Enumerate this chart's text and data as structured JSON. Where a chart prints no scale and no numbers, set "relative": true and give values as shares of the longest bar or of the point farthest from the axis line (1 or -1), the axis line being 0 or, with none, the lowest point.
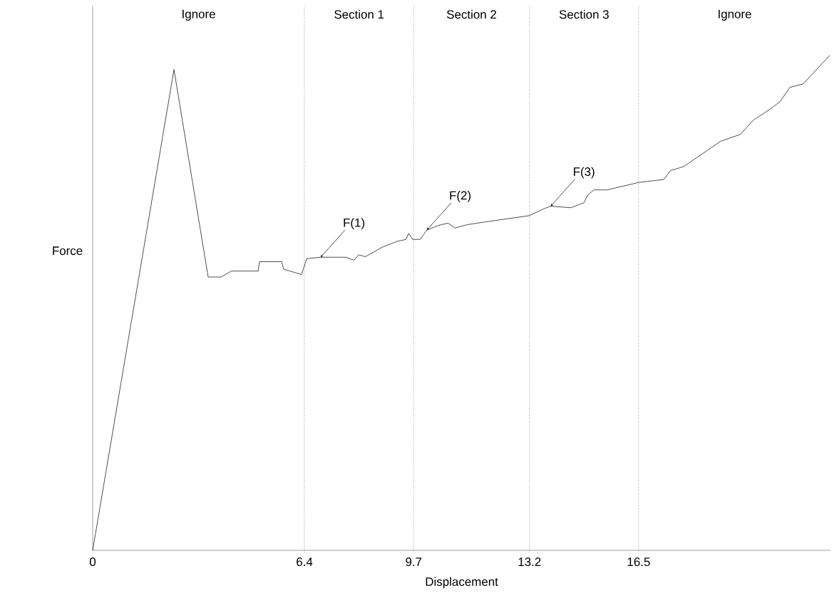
{
  "chart_data": {
    "type": "line",
    "relative": true,
    "xlabel": "Displacement",
    "ylabel": "Force",
    "color": "#000000",
    "line_style": "solid",
    "marker": "none",
    "grid": false,
    "tick_labels": "x",
    "xlim": [
      0,
      22.3
    ],
    "xticks": [
      0,
      6.4,
      9.7,
      13.2,
      16.5
    ],
    "x": [
      0,
      2.457,
      3.49,
      3.88,
      4.19,
      5.0,
      5.04,
      5.71,
      5.77,
      6.31,
      6.47,
      6.89,
      7.65,
      7.9,
      8.04,
      8.24,
      8.74,
      9.2,
      9.47,
      9.55,
      9.67,
      9.9,
      10.1,
      10.44,
      10.74,
      10.94,
      11.34,
      11.94,
      13.2,
      13.64,
      13.84,
      14.45,
      14.85,
      14.95,
      15.15,
      15.55,
      16.5,
      17.26,
      17.46,
      17.86,
      18.97,
      19.57,
      19.97,
      20.47,
      20.77,
      21.07,
      21.47,
      22.28
    ],
    "values": [
      0,
      0.971,
      0.552,
      0.552,
      0.564,
      0.564,
      0.583,
      0.583,
      0.568,
      0.557,
      0.589,
      0.592,
      0.592,
      0.586,
      0.597,
      0.593,
      0.612,
      0.624,
      0.628,
      0.64,
      0.628,
      0.628,
      0.647,
      0.656,
      0.661,
      0.651,
      0.658,
      0.664,
      0.676,
      0.69,
      0.695,
      0.692,
      0.702,
      0.717,
      0.728,
      0.728,
      0.743,
      0.749,
      0.767,
      0.775,
      0.826,
      0.84,
      0.869,
      0.891,
      0.906,
      0.935,
      0.942,
      1.0
    ],
    "ref_lines": [
      {
        "axis": "x",
        "value": 6.4,
        "line_style": "dotted"
      },
      {
        "axis": "x",
        "value": 9.7,
        "line_style": "dotted"
      },
      {
        "axis": "x",
        "value": 13.2,
        "line_style": "dotted"
      },
      {
        "axis": "x",
        "value": 16.5,
        "line_style": "dotted"
      }
    ],
    "annotations": [
      "Ignore",
      "Section 1",
      "Section 2",
      "Section 3",
      "Ignore",
      {
        "text": "F(1)",
        "x": 6.89,
        "y": 0.592
      },
      {
        "text": "F(2)",
        "x": 10.1,
        "y": 0.647
      },
      {
        "text": "F(3)",
        "x": 13.84,
        "y": 0.695
      }
    ]
  }
}
